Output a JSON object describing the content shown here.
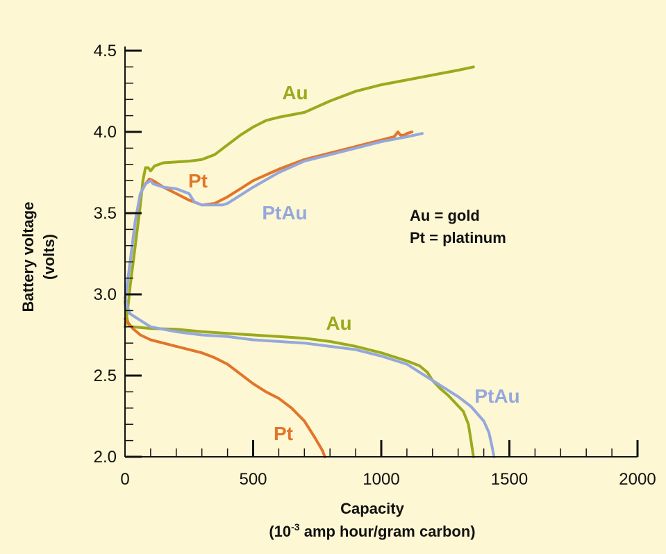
{
  "chart_data": {
    "type": "line",
    "xlabel": "Capacity",
    "xlabel_units_prefix": "(10",
    "xlabel_units_exponent": "-3",
    "xlabel_units_suffix": " amp hour/gram carbon)",
    "ylabel": "Battery voltage",
    "ylabel_units": "(volts)",
    "xlim": [
      0,
      2000
    ],
    "ylim": [
      2.0,
      4.5
    ],
    "x_ticks": [
      {
        "value": 0,
        "label": "0"
      },
      {
        "value": 500,
        "label": "500"
      },
      {
        "value": 1000,
        "label": "1000"
      },
      {
        "value": 1500,
        "label": "1500"
      },
      {
        "value": 2000,
        "label": "2000"
      }
    ],
    "y_ticks": [
      {
        "value": 2.0,
        "label": "2.0"
      },
      {
        "value": 2.5,
        "label": "2.5"
      },
      {
        "value": 3.0,
        "label": "3.0"
      },
      {
        "value": 3.5,
        "label": "3.5"
      },
      {
        "value": 4.0,
        "label": "4.0"
      },
      {
        "value": 4.5,
        "label": "4.5"
      }
    ],
    "legend": [
      {
        "symbol": "Au",
        "eq": "=",
        "meaning": "gold"
      },
      {
        "symbol": "Pt",
        "eq": " =",
        "meaning": "platinum"
      }
    ],
    "colors": {
      "Au": "#9AAA1E",
      "Pt": "#E0762A",
      "PtAu": "#94A8DD",
      "axis": "#111111",
      "background": "#FEF7D3"
    },
    "series": [
      {
        "name": "Au",
        "phase": "charge",
        "color_key": "Au",
        "label": "Au",
        "points": [
          [
            0,
            2.8
          ],
          [
            10,
            2.9
          ],
          [
            20,
            3.05
          ],
          [
            40,
            3.3
          ],
          [
            60,
            3.55
          ],
          [
            70,
            3.7
          ],
          [
            80,
            3.78
          ],
          [
            90,
            3.78
          ],
          [
            100,
            3.76
          ],
          [
            115,
            3.79
          ],
          [
            150,
            3.81
          ],
          [
            250,
            3.82
          ],
          [
            300,
            3.83
          ],
          [
            350,
            3.86
          ],
          [
            400,
            3.92
          ],
          [
            450,
            3.98
          ],
          [
            500,
            4.03
          ],
          [
            550,
            4.07
          ],
          [
            600,
            4.09
          ],
          [
            700,
            4.12
          ],
          [
            800,
            4.19
          ],
          [
            900,
            4.25
          ],
          [
            1000,
            4.29
          ],
          [
            1100,
            4.32
          ],
          [
            1200,
            4.35
          ],
          [
            1300,
            4.38
          ],
          [
            1360,
            4.4
          ]
        ]
      },
      {
        "name": "Pt",
        "phase": "charge",
        "color_key": "Pt",
        "label": "Pt",
        "points": [
          [
            0,
            2.95
          ],
          [
            20,
            3.2
          ],
          [
            40,
            3.45
          ],
          [
            60,
            3.62
          ],
          [
            80,
            3.68
          ],
          [
            95,
            3.71
          ],
          [
            110,
            3.7
          ],
          [
            150,
            3.66
          ],
          [
            200,
            3.62
          ],
          [
            250,
            3.58
          ],
          [
            300,
            3.55
          ],
          [
            350,
            3.56
          ],
          [
            400,
            3.6
          ],
          [
            450,
            3.65
          ],
          [
            500,
            3.7
          ],
          [
            600,
            3.77
          ],
          [
            700,
            3.83
          ],
          [
            800,
            3.87
          ],
          [
            900,
            3.91
          ],
          [
            1000,
            3.95
          ],
          [
            1050,
            3.97
          ],
          [
            1065,
            4.0
          ],
          [
            1075,
            3.98
          ],
          [
            1090,
            3.98
          ],
          [
            1100,
            3.99
          ],
          [
            1120,
            4.0
          ]
        ]
      },
      {
        "name": "PtAu",
        "phase": "charge",
        "color_key": "PtAu",
        "label": "PtAu",
        "points": [
          [
            0,
            2.95
          ],
          [
            20,
            3.2
          ],
          [
            40,
            3.45
          ],
          [
            60,
            3.62
          ],
          [
            80,
            3.68
          ],
          [
            100,
            3.7
          ],
          [
            110,
            3.68
          ],
          [
            150,
            3.66
          ],
          [
            200,
            3.65
          ],
          [
            250,
            3.62
          ],
          [
            270,
            3.57
          ],
          [
            300,
            3.55
          ],
          [
            340,
            3.55
          ],
          [
            380,
            3.55
          ],
          [
            400,
            3.56
          ],
          [
            450,
            3.61
          ],
          [
            500,
            3.66
          ],
          [
            600,
            3.75
          ],
          [
            700,
            3.82
          ],
          [
            800,
            3.86
          ],
          [
            900,
            3.9
          ],
          [
            1000,
            3.94
          ],
          [
            1100,
            3.97
          ],
          [
            1160,
            3.99
          ]
        ]
      },
      {
        "name": "Au",
        "phase": "discharge",
        "color_key": "Au",
        "label": "Au",
        "points": [
          [
            0,
            2.95
          ],
          [
            8,
            2.85
          ],
          [
            15,
            2.81
          ],
          [
            30,
            2.8
          ],
          [
            100,
            2.79
          ],
          [
            200,
            2.785
          ],
          [
            300,
            2.77
          ],
          [
            400,
            2.76
          ],
          [
            500,
            2.75
          ],
          [
            600,
            2.74
          ],
          [
            700,
            2.73
          ],
          [
            800,
            2.71
          ],
          [
            900,
            2.68
          ],
          [
            1000,
            2.64
          ],
          [
            1100,
            2.59
          ],
          [
            1150,
            2.56
          ],
          [
            1180,
            2.52
          ],
          [
            1200,
            2.47
          ],
          [
            1230,
            2.42
          ],
          [
            1260,
            2.38
          ],
          [
            1290,
            2.33
          ],
          [
            1320,
            2.28
          ],
          [
            1340,
            2.2
          ],
          [
            1350,
            2.1
          ],
          [
            1360,
            2.0
          ]
        ]
      },
      {
        "name": "PtAu",
        "phase": "discharge",
        "color_key": "PtAu",
        "label": "PtAu",
        "points": [
          [
            0,
            2.98
          ],
          [
            10,
            2.92
          ],
          [
            20,
            2.88
          ],
          [
            50,
            2.85
          ],
          [
            100,
            2.8
          ],
          [
            200,
            2.77
          ],
          [
            300,
            2.75
          ],
          [
            400,
            2.74
          ],
          [
            500,
            2.72
          ],
          [
            600,
            2.71
          ],
          [
            700,
            2.7
          ],
          [
            800,
            2.68
          ],
          [
            900,
            2.66
          ],
          [
            1000,
            2.62
          ],
          [
            1100,
            2.57
          ],
          [
            1150,
            2.52
          ],
          [
            1200,
            2.47
          ],
          [
            1250,
            2.42
          ],
          [
            1300,
            2.37
          ],
          [
            1350,
            2.31
          ],
          [
            1400,
            2.22
          ],
          [
            1420,
            2.15
          ],
          [
            1430,
            2.08
          ],
          [
            1440,
            2.0
          ]
        ]
      },
      {
        "name": "Pt",
        "phase": "discharge",
        "color_key": "Pt",
        "label": "Pt",
        "points": [
          [
            0,
            2.85
          ],
          [
            30,
            2.79
          ],
          [
            60,
            2.75
          ],
          [
            100,
            2.72
          ],
          [
            150,
            2.7
          ],
          [
            200,
            2.68
          ],
          [
            250,
            2.66
          ],
          [
            300,
            2.64
          ],
          [
            350,
            2.61
          ],
          [
            400,
            2.57
          ],
          [
            450,
            2.51
          ],
          [
            500,
            2.45
          ],
          [
            550,
            2.4
          ],
          [
            600,
            2.36
          ],
          [
            650,
            2.3
          ],
          [
            700,
            2.22
          ],
          [
            740,
            2.12
          ],
          [
            770,
            2.04
          ],
          [
            780,
            2.0
          ]
        ]
      }
    ]
  }
}
